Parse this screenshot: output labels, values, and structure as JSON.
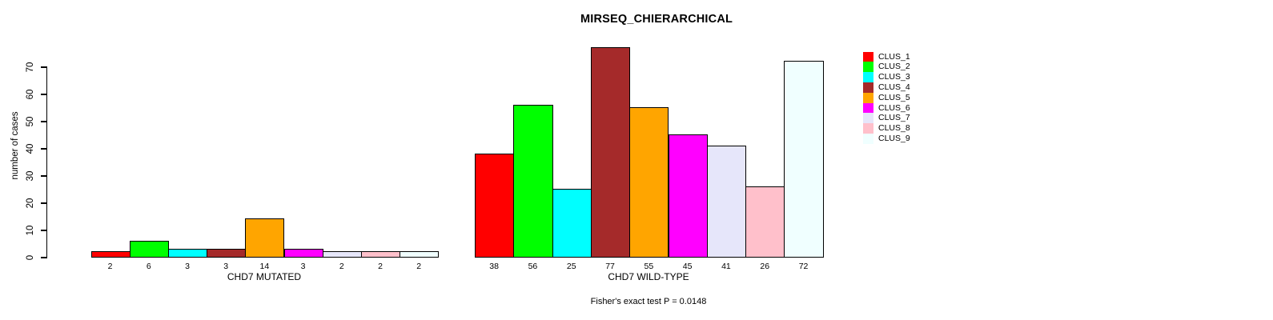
{
  "chart_data": {
    "type": "bar",
    "title": "MIRSEQ_CHIERARCHICAL",
    "ylabel": "number of cases",
    "ylim": [
      0,
      77
    ],
    "yticks": [
      0,
      10,
      20,
      30,
      40,
      50,
      60,
      70
    ],
    "grid": false,
    "legend_position": "right-outside",
    "annotation": "Fisher's exact test P = 0.0148",
    "clusters": [
      "CLUS_1",
      "CLUS_2",
      "CLUS_3",
      "CLUS_4",
      "CLUS_5",
      "CLUS_6",
      "CLUS_7",
      "CLUS_8",
      "CLUS_9"
    ],
    "colors": [
      "#ff0000",
      "#00ff00",
      "#00ffff",
      "#a52a2a",
      "#ffa500",
      "#ff00ff",
      "#e6e6fa",
      "#ffc0cb",
      "#f0ffff"
    ],
    "groups": [
      {
        "label": "CHD7 MUTATED",
        "values": [
          2,
          6,
          3,
          3,
          14,
          3,
          2,
          2,
          2
        ]
      },
      {
        "label": "CHD7 WILD-TYPE",
        "values": [
          38,
          56,
          25,
          77,
          55,
          45,
          41,
          26,
          72
        ]
      }
    ]
  }
}
